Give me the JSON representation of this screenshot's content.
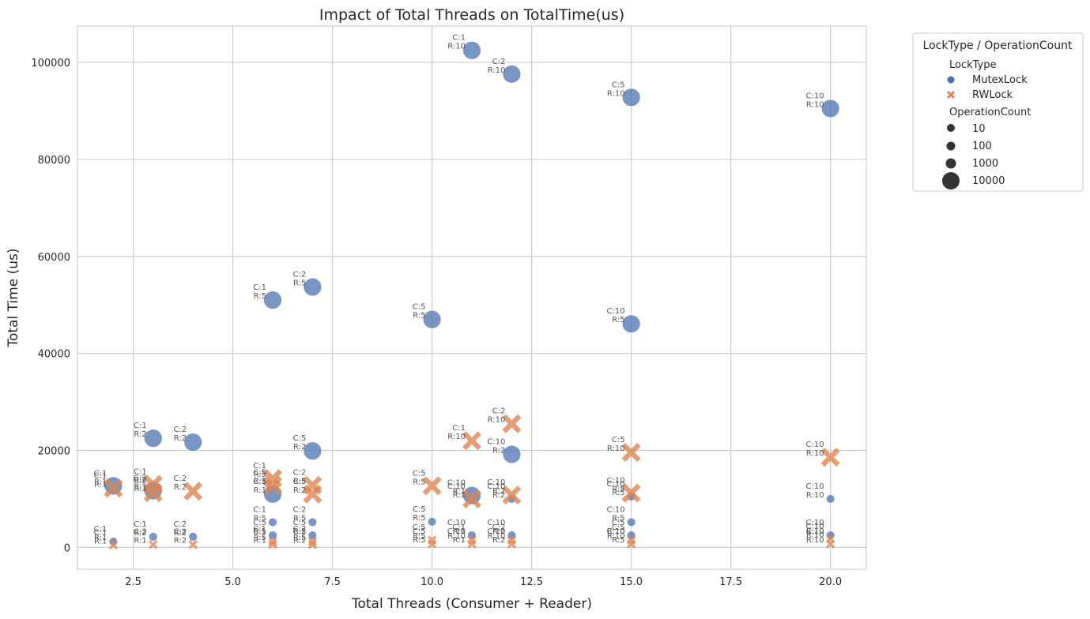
{
  "chart_data": {
    "type": "scatter",
    "title": "Impact of Total Threads on TotalTime(us)",
    "xlabel": "Total Threads (Consumer + Reader)",
    "ylabel": "Total Time (us)",
    "xlim": [
      1.1,
      20.9
    ],
    "ylim": [
      -4500,
      107500
    ],
    "xticks": [
      2.5,
      5.0,
      7.5,
      10.0,
      12.5,
      15.0,
      17.5,
      20.0
    ],
    "xtick_labels": [
      "2.5",
      "5.0",
      "7.5",
      "10.0",
      "12.5",
      "15.0",
      "17.5",
      "20.0"
    ],
    "yticks": [
      0,
      20000,
      40000,
      60000,
      80000,
      100000
    ],
    "ytick_labels": [
      "0",
      "20000",
      "40000",
      "60000",
      "80000",
      "100000"
    ],
    "grid": true,
    "legend": {
      "placement": "outside-top-right",
      "title": "LockType / OperationCount",
      "hue_title": "LockType",
      "size_title": "OperationCount",
      "hue_entries": [
        {
          "name": "MutexLock",
          "marker": "circle",
          "color": "#4c72b0"
        },
        {
          "name": "RWLock",
          "marker": "x",
          "color": "#dd8452"
        }
      ],
      "size_entries": [
        "10",
        "100",
        "1000",
        "10000"
      ]
    },
    "colors": {
      "MutexLock": "#4c72b0",
      "RWLock": "#dd8452"
    },
    "series": [
      {
        "name": "MutexLock",
        "marker": "circle",
        "points": [
          {
            "x": 2,
            "y": 12700,
            "ops": 10000,
            "label": "C:1\nR:1"
          },
          {
            "x": 2,
            "y": 1200,
            "ops": 1000,
            "label": "C:1\nR:1"
          },
          {
            "x": 3,
            "y": 22500,
            "ops": 10000,
            "label": "C:1\nR:2"
          },
          {
            "x": 3,
            "y": 11700,
            "ops": 10000,
            "label": "C:2\nR:1"
          },
          {
            "x": 3,
            "y": 2200,
            "ops": 1000,
            "label": "C:1\nR:2"
          },
          {
            "x": 4,
            "y": 21700,
            "ops": 10000,
            "label": "C:2\nR:2"
          },
          {
            "x": 4,
            "y": 2200,
            "ops": 1000,
            "label": "C:2\nR:2"
          },
          {
            "x": 6,
            "y": 51000,
            "ops": 10000,
            "label": "C:1\nR:5"
          },
          {
            "x": 6,
            "y": 11000,
            "ops": 10000,
            "label": "C:5\nR:1"
          },
          {
            "x": 6,
            "y": 5200,
            "ops": 1000,
            "label": "C:1\nR:5"
          },
          {
            "x": 6,
            "y": 2500,
            "ops": 1000,
            "label": "C:5\nR:1"
          },
          {
            "x": 7,
            "y": 53700,
            "ops": 10000,
            "label": "C:2\nR:5"
          },
          {
            "x": 7,
            "y": 19900,
            "ops": 10000,
            "label": "C:5\nR:2"
          },
          {
            "x": 7,
            "y": 5200,
            "ops": 1000,
            "label": "C:2\nR:5"
          },
          {
            "x": 7,
            "y": 2500,
            "ops": 1000,
            "label": "C:5\nR:2"
          },
          {
            "x": 10,
            "y": 47000,
            "ops": 10000,
            "label": "C:5\nR:5"
          },
          {
            "x": 10,
            "y": 5300,
            "ops": 1000,
            "label": "C:5\nR:5"
          },
          {
            "x": 11,
            "y": 102500,
            "ops": 10000,
            "label": "C:1\nR:10"
          },
          {
            "x": 11,
            "y": 10700,
            "ops": 10000,
            "label": "C:10\nR:1"
          },
          {
            "x": 11,
            "y": 2500,
            "ops": 1000,
            "label": "C:10\nR:1"
          },
          {
            "x": 12,
            "y": 97600,
            "ops": 10000,
            "label": "C:2\nR:10"
          },
          {
            "x": 12,
            "y": 19200,
            "ops": 10000,
            "label": "C:10\nR:2"
          },
          {
            "x": 12,
            "y": 10000,
            "ops": 1000,
            "label": "C:10\nR:2"
          },
          {
            "x": 12,
            "y": 2500,
            "ops": 1000,
            "label": "C:10\nR:2"
          },
          {
            "x": 15,
            "y": 92800,
            "ops": 10000,
            "label": "C:5\nR:10"
          },
          {
            "x": 15,
            "y": 46100,
            "ops": 10000,
            "label": "C:10\nR:5"
          },
          {
            "x": 15,
            "y": 10500,
            "ops": 1000,
            "label": "C:10\nR:5"
          },
          {
            "x": 15,
            "y": 5200,
            "ops": 1000,
            "label": "C:10\nR:5"
          },
          {
            "x": 15,
            "y": 2500,
            "ops": 1000,
            "label": "C:5\nR:10"
          },
          {
            "x": 20,
            "y": 90500,
            "ops": 10000,
            "label": "C:10\nR:10"
          },
          {
            "x": 20,
            "y": 10000,
            "ops": 1000,
            "label": "C:10\nR:10"
          },
          {
            "x": 20,
            "y": 2500,
            "ops": 1000,
            "label": "C:10\nR:10"
          }
        ]
      },
      {
        "name": "RWLock",
        "marker": "x",
        "points": [
          {
            "x": 2,
            "y": 12200,
            "ops": 10000,
            "label": "C:1\nR:1"
          },
          {
            "x": 2,
            "y": 500,
            "ops": 1000,
            "label": "C:1\nR:1"
          },
          {
            "x": 3,
            "y": 13000,
            "ops": 10000,
            "label": "C:1\nR:2"
          },
          {
            "x": 3,
            "y": 11300,
            "ops": 10000,
            "label": "C:2\nR:1"
          },
          {
            "x": 3,
            "y": 600,
            "ops": 1000,
            "label": "C:2\nR:1"
          },
          {
            "x": 4,
            "y": 11600,
            "ops": 10000,
            "label": "C:2\nR:2"
          },
          {
            "x": 4,
            "y": 600,
            "ops": 1000,
            "label": "C:2\nR:2"
          },
          {
            "x": 6,
            "y": 14200,
            "ops": 10000,
            "label": "C:1\nR:5"
          },
          {
            "x": 6,
            "y": 12800,
            "ops": 10000,
            "label": "C:5\nR:1"
          },
          {
            "x": 6,
            "y": 1200,
            "ops": 1000,
            "label": "C:1\nR:5"
          },
          {
            "x": 6,
            "y": 600,
            "ops": 1000,
            "label": "C:5\nR:1"
          },
          {
            "x": 7,
            "y": 12800,
            "ops": 10000,
            "label": "C:2\nR:5"
          },
          {
            "x": 7,
            "y": 11000,
            "ops": 10000,
            "label": "C:5\nR:2"
          },
          {
            "x": 7,
            "y": 1200,
            "ops": 1000,
            "label": "C:2\nR:5"
          },
          {
            "x": 7,
            "y": 600,
            "ops": 1000,
            "label": "C:5\nR:2"
          },
          {
            "x": 10,
            "y": 12700,
            "ops": 10000,
            "label": "C:5\nR:5"
          },
          {
            "x": 10,
            "y": 1500,
            "ops": 1000,
            "label": "C:5\nR:5"
          },
          {
            "x": 10,
            "y": 700,
            "ops": 1000,
            "label": "C:5\nR:5"
          },
          {
            "x": 11,
            "y": 22000,
            "ops": 10000,
            "label": "C:1\nR:10"
          },
          {
            "x": 11,
            "y": 10000,
            "ops": 10000,
            "label": "C:10\nR:1"
          },
          {
            "x": 11,
            "y": 1500,
            "ops": 1000,
            "label": "C:1\nR:10"
          },
          {
            "x": 11,
            "y": 700,
            "ops": 1000,
            "label": "C:10\nR:1"
          },
          {
            "x": 12,
            "y": 25500,
            "ops": 10000,
            "label": "C:2\nR:10"
          },
          {
            "x": 12,
            "y": 10800,
            "ops": 10000,
            "label": "C:10\nR:2"
          },
          {
            "x": 12,
            "y": 1500,
            "ops": 1000,
            "label": "C:2\nR:10"
          },
          {
            "x": 12,
            "y": 700,
            "ops": 1000,
            "label": "C:10\nR:2"
          },
          {
            "x": 15,
            "y": 19600,
            "ops": 10000,
            "label": "C:5\nR:10"
          },
          {
            "x": 15,
            "y": 11200,
            "ops": 10000,
            "label": "C:10\nR:5"
          },
          {
            "x": 15,
            "y": 1500,
            "ops": 1000,
            "label": "C:5\nR:10"
          },
          {
            "x": 15,
            "y": 700,
            "ops": 1000,
            "label": "C:10\nR:5"
          },
          {
            "x": 20,
            "y": 18600,
            "ops": 10000,
            "label": "C:10\nR:10"
          },
          {
            "x": 20,
            "y": 1800,
            "ops": 1000,
            "label": "C:10\nR:10"
          },
          {
            "x": 20,
            "y": 700,
            "ops": 1000,
            "label": "C:10\nR:10"
          }
        ]
      }
    ]
  }
}
